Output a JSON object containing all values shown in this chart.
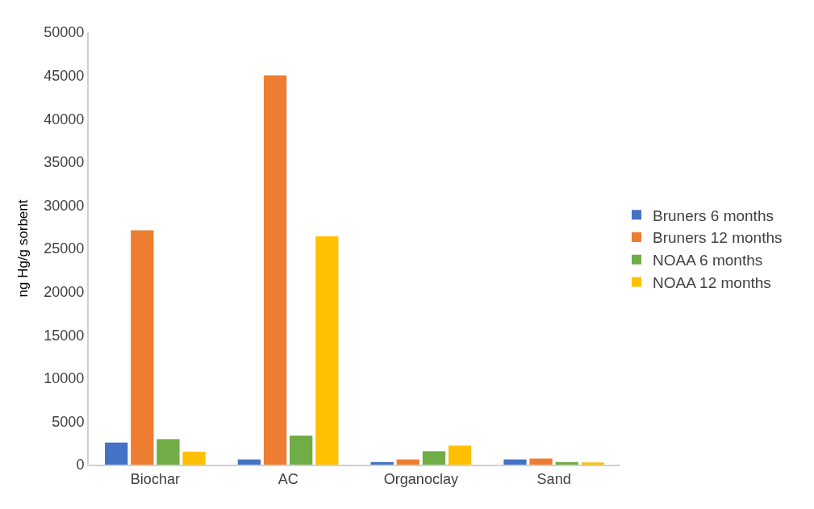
{
  "chart_data": {
    "type": "bar",
    "ylabel": "ng Hg/g sorbent",
    "categories": [
      "Biochar",
      "AC",
      "Organoclay",
      "Sand"
    ],
    "series": [
      {
        "name": "Bruners 6 months",
        "color": "#4472c4",
        "values": [
          2550,
          600,
          300,
          600
        ]
      },
      {
        "name": "Bruners 12 months",
        "color": "#ed7d31",
        "values": [
          27100,
          45000,
          600,
          700
        ]
      },
      {
        "name": "NOAA 6 months",
        "color": "#70ad47",
        "values": [
          2950,
          3350,
          1550,
          300
        ]
      },
      {
        "name": "NOAA 12 months",
        "color": "#ffc000",
        "values": [
          1500,
          26400,
          2200,
          250
        ]
      }
    ],
    "ylim": [
      0,
      50000
    ],
    "yticks": [
      0,
      5000,
      10000,
      15000,
      20000,
      25000,
      30000,
      35000,
      40000,
      45000,
      50000
    ],
    "grid": false,
    "legend": "right"
  }
}
